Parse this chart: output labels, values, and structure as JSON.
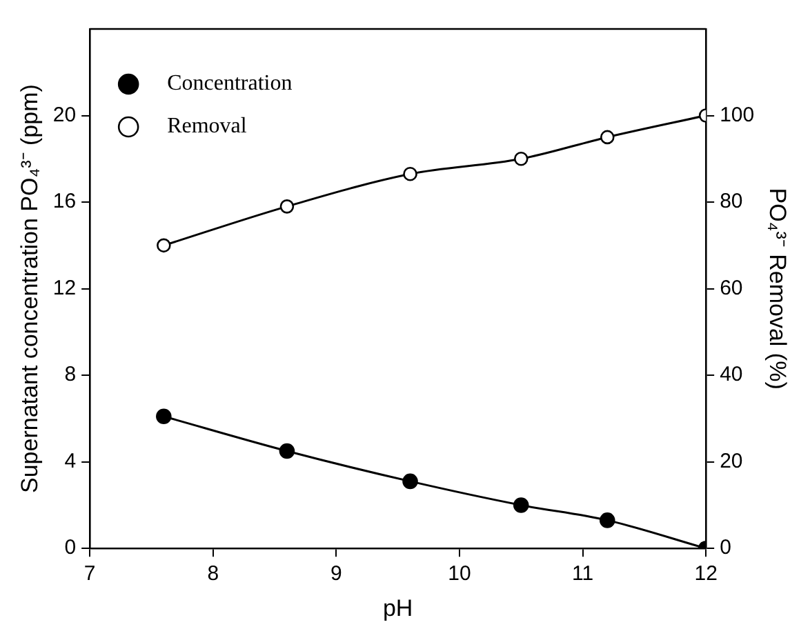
{
  "chart_data": {
    "type": "line",
    "xlabel": "pH",
    "ylabel": "Supernatant concentration PO₄³⁻ (ppm)",
    "y2label": "PO₄³⁻ Removal (%)",
    "x": [
      7.6,
      8.6,
      9.6,
      10.5,
      11.2,
      12
    ],
    "series": [
      {
        "name": "Concentration",
        "color": "#000000",
        "values": [
          6.1,
          4.5,
          3.1,
          2.0,
          1.3,
          0
        ]
      },
      {
        "name": "Removal",
        "color": "#000000",
        "axis": "y2",
        "values": [
          70,
          79,
          86.5,
          90,
          95,
          100
        ]
      }
    ],
    "xlim": [
      7,
      12
    ],
    "xticks": [
      7,
      8,
      9,
      10,
      11,
      12
    ],
    "ylim": [
      0,
      24
    ],
    "yticks": [
      0,
      4,
      8,
      12,
      16,
      20
    ],
    "y2lim": [
      0,
      120
    ],
    "y2ticks": [
      0,
      20,
      40,
      60,
      80,
      100
    ],
    "grid": false,
    "legend": "top left",
    "marker": "circle",
    "line_style": "solid"
  }
}
